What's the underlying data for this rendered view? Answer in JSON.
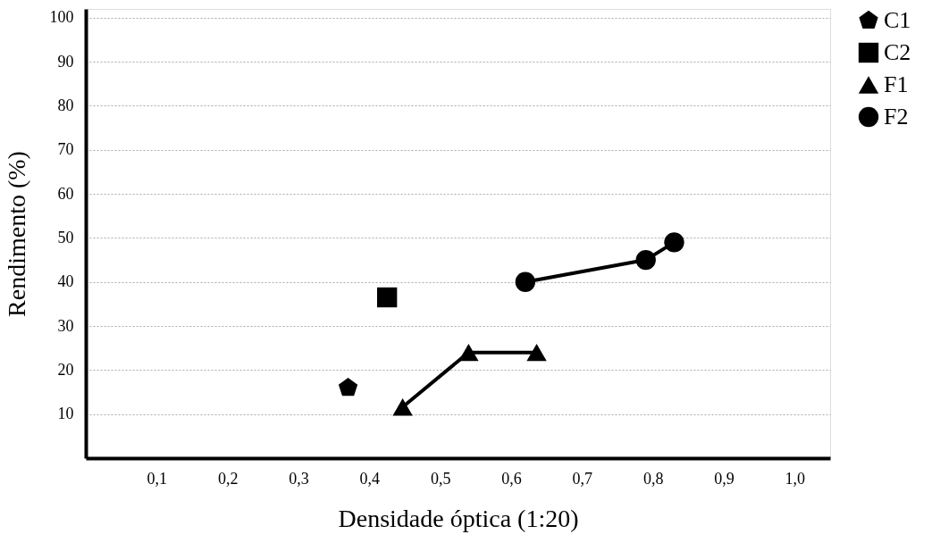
{
  "chart_data": {
    "type": "scatter",
    "xlabel": "Densidade óptica (1:20)",
    "ylabel": "Rendimento (%)",
    "xlim": [
      0,
      1.05
    ],
    "ylim": [
      0,
      102
    ],
    "xticks": [
      {
        "value": 0.1,
        "label": "0,1"
      },
      {
        "value": 0.2,
        "label": "0,2"
      },
      {
        "value": 0.3,
        "label": "0,3"
      },
      {
        "value": 0.4,
        "label": "0,4"
      },
      {
        "value": 0.5,
        "label": "0,5"
      },
      {
        "value": 0.6,
        "label": "0,6"
      },
      {
        "value": 0.7,
        "label": "0,7"
      },
      {
        "value": 0.8,
        "label": "0,8"
      },
      {
        "value": 0.9,
        "label": "0,9"
      },
      {
        "value": 1.0,
        "label": "1,0"
      }
    ],
    "yticks": [
      10,
      20,
      30,
      40,
      50,
      60,
      70,
      80,
      90,
      100
    ],
    "grid": "y",
    "legend": "right",
    "series": [
      {
        "name": "C1",
        "color": "#000000",
        "x": [
          0.37
        ],
        "values": [
          16
        ]
      },
      {
        "name": "C2",
        "marker": "square",
        "color": "#000000",
        "x": [
          0.425
        ],
        "values": [
          36.5
        ]
      },
      {
        "name": "F1",
        "type": "line",
        "marker": "triangle",
        "color": "#000000",
        "x": [
          0.447,
          0.54,
          0.636
        ],
        "values": [
          11.6,
          24,
          24
        ]
      },
      {
        "name": "F2",
        "type": "line",
        "marker": "circle",
        "color": "#000000",
        "x": [
          0.62,
          0.79,
          0.83
        ],
        "values": [
          40,
          45,
          49
        ]
      }
    ]
  }
}
